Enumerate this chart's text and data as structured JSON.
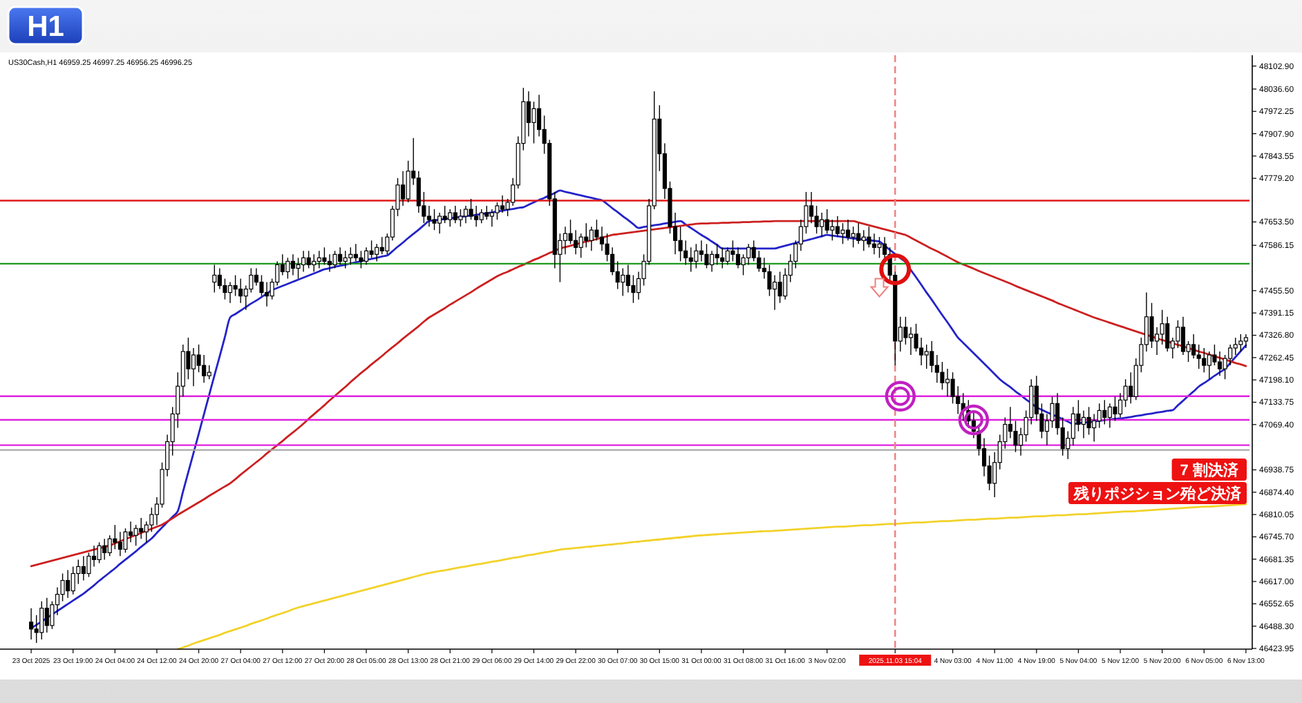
{
  "chart_data": {
    "type": "candlestick",
    "title": "H1",
    "subtitle": "US30Cash,H1 46959.25 46997.25 46956.25 46996.25",
    "categories": [
      "23 Oct 2025",
      null,
      null,
      null,
      null,
      null,
      null,
      null,
      "23 Oct 19:00",
      null,
      null,
      null,
      null,
      null,
      null,
      null,
      "24 Oct 04:00",
      null,
      null,
      null,
      null,
      null,
      null,
      null,
      "24 Oct 12:00",
      null,
      null,
      null,
      null,
      null,
      null,
      null,
      "24 Oct 20:00",
      null,
      null,
      null,
      null,
      null,
      null,
      null,
      "27 Oct 04:00",
      null,
      null,
      null,
      null,
      null,
      null,
      null,
      "27 Oct 12:00",
      null,
      null,
      null,
      null,
      null,
      null,
      null,
      "27 Oct 20:00",
      null,
      null,
      null,
      null,
      null,
      null,
      null,
      "28 Oct 05:00",
      null,
      null,
      null,
      null,
      null,
      null,
      null,
      "28 Oct 13:00",
      null,
      null,
      null,
      null,
      null,
      null,
      null,
      "28 Oct 21:00",
      null,
      null,
      null,
      null,
      null,
      null,
      null,
      "29 Oct 06:00",
      null,
      null,
      null,
      null,
      null,
      null,
      null,
      "29 Oct 14:00",
      null,
      null,
      null,
      null,
      null,
      null,
      null,
      "29 Oct 22:00",
      null,
      null,
      null,
      null,
      null,
      null,
      null,
      "30 Oct 07:00",
      null,
      null,
      null,
      null,
      null,
      null,
      null,
      "30 Oct 15:00",
      null,
      null,
      null,
      null,
      null,
      null,
      null,
      "31 Oct 00:00",
      null,
      null,
      null,
      null,
      null,
      null,
      null,
      "31 Oct 08:00",
      null,
      null,
      null,
      null,
      null,
      null,
      null,
      "31 Oct 16:00",
      null,
      null,
      null,
      null,
      null,
      null,
      null,
      "3 Nov 02:00",
      null,
      null,
      null,
      null,
      null,
      null,
      null,
      null,
      null,
      null,
      null,
      null,
      "2025.11.03 15:04",
      null,
      null,
      null,
      null,
      null,
      null,
      null,
      null,
      null,
      null,
      "4 Nov 03:00",
      null,
      null,
      null,
      null,
      null,
      null,
      null,
      "4 Nov 11:00",
      null,
      null,
      null,
      null,
      null,
      null,
      null,
      "4 Nov 19:00",
      null,
      null,
      null,
      null,
      null,
      null,
      null,
      "5 Nov 04:00",
      null,
      null,
      null,
      null,
      null,
      null,
      null,
      "5 Nov 12:00",
      null,
      null,
      null,
      null,
      null,
      null,
      null,
      "5 Nov 20:00",
      null,
      null,
      null,
      null,
      null,
      null,
      null,
      "6 Nov 05:00",
      null,
      null,
      null,
      null,
      null,
      null,
      null,
      "6 Nov 13:00"
    ],
    "ohlc": [
      [
        46500,
        46540,
        46450,
        46480
      ],
      [
        46480,
        46520,
        46440,
        46470
      ],
      [
        46470,
        46560,
        46450,
        46540
      ],
      [
        46540,
        46570,
        46470,
        46490
      ],
      [
        46490,
        46560,
        46480,
        46550
      ],
      [
        46550,
        46600,
        46520,
        46580
      ],
      [
        46580,
        46640,
        46560,
        46620
      ],
      [
        46620,
        46650,
        46570,
        46590
      ],
      [
        46590,
        46660,
        46580,
        46640
      ],
      [
        46640,
        46680,
        46610,
        46660
      ],
      [
        46660,
        46690,
        46620,
        46640
      ],
      [
        46640,
        46700,
        46630,
        46690
      ],
      [
        46690,
        46720,
        46660,
        46680
      ],
      [
        46680,
        46730,
        46670,
        46720
      ],
      [
        46720,
        46740,
        46680,
        46700
      ],
      [
        46700,
        46750,
        46690,
        46740
      ],
      [
        46740,
        46780,
        46710,
        46730
      ],
      [
        46730,
        46760,
        46690,
        46710
      ],
      [
        46710,
        46770,
        46700,
        46760
      ],
      [
        46760,
        46790,
        46730,
        46750
      ],
      [
        46750,
        46780,
        46720,
        46770
      ],
      [
        46770,
        46800,
        46740,
        46760
      ],
      [
        46760,
        46790,
        46730,
        46780
      ],
      [
        46780,
        46830,
        46760,
        46810
      ],
      [
        46810,
        46860,
        46780,
        46840
      ],
      [
        46840,
        46960,
        46830,
        46940
      ],
      [
        46940,
        47040,
        46920,
        47020
      ],
      [
        47020,
        47120,
        46980,
        47100
      ],
      [
        47100,
        47220,
        47060,
        47180
      ],
      [
        47180,
        47300,
        47150,
        47280
      ],
      [
        47280,
        47320,
        47200,
        47230
      ],
      [
        47230,
        47290,
        47180,
        47270
      ],
      [
        47270,
        47300,
        47220,
        47240
      ],
      [
        47240,
        47270,
        47190,
        47210
      ],
      [
        47210,
        47240,
        47200,
        47220
      ],
      [
        47480,
        47530,
        47450,
        47500
      ],
      [
        47500,
        47520,
        47460,
        47470
      ],
      [
        47470,
        47490,
        47430,
        47450
      ],
      [
        47450,
        47480,
        47420,
        47470
      ],
      [
        47470,
        47500,
        47440,
        47460
      ],
      [
        47460,
        47490,
        47420,
        47440
      ],
      [
        47440,
        47470,
        47400,
        47460
      ],
      [
        47460,
        47520,
        47450,
        47500
      ],
      [
        47500,
        47520,
        47470,
        47480
      ],
      [
        47480,
        47500,
        47440,
        47450
      ],
      [
        47450,
        47480,
        47410,
        47440
      ],
      [
        47440,
        47490,
        47430,
        47480
      ],
      [
        47480,
        47540,
        47470,
        47530
      ],
      [
        47530,
        47560,
        47500,
        47510
      ],
      [
        47510,
        47550,
        47490,
        47540
      ],
      [
        47540,
        47560,
        47500,
        47520
      ],
      [
        47520,
        47550,
        47490,
        47530
      ],
      [
        47530,
        47570,
        47510,
        47550
      ],
      [
        47550,
        47570,
        47520,
        47530
      ],
      [
        47530,
        47560,
        47510,
        47540
      ],
      [
        47540,
        47570,
        47520,
        47550
      ],
      [
        47550,
        47580,
        47530,
        47540
      ],
      [
        47540,
        47560,
        47510,
        47530
      ],
      [
        47530,
        47570,
        47520,
        47560
      ],
      [
        47560,
        47580,
        47530,
        47540
      ],
      [
        47540,
        47570,
        47520,
        47550
      ],
      [
        47550,
        47580,
        47530,
        47560
      ],
      [
        47560,
        47590,
        47540,
        47550
      ],
      [
        47550,
        47570,
        47520,
        47540
      ],
      [
        47540,
        47580,
        47530,
        47570
      ],
      [
        47570,
        47600,
        47550,
        47560
      ],
      [
        47560,
        47590,
        47540,
        47580
      ],
      [
        47580,
        47610,
        47560,
        47570
      ],
      [
        47570,
        47620,
        47560,
        47610
      ],
      [
        47610,
        47700,
        47600,
        47690
      ],
      [
        47690,
        47780,
        47670,
        47760
      ],
      [
        47760,
        47800,
        47700,
        47720
      ],
      [
        47720,
        47830,
        47710,
        47800
      ],
      [
        47800,
        47895,
        47760,
        47780
      ],
      [
        47780,
        47800,
        47680,
        47700
      ],
      [
        47700,
        47740,
        47650,
        47670
      ],
      [
        47670,
        47700,
        47640,
        47660
      ],
      [
        47660,
        47690,
        47630,
        47650
      ],
      [
        47650,
        47680,
        47620,
        47670
      ],
      [
        47670,
        47700,
        47650,
        47660
      ],
      [
        47660,
        47690,
        47640,
        47680
      ],
      [
        47680,
        47700,
        47650,
        47660
      ],
      [
        47660,
        47690,
        47640,
        47670
      ],
      [
        47670,
        47700,
        47650,
        47690
      ],
      [
        47690,
        47720,
        47660,
        47670
      ],
      [
        47670,
        47700,
        47640,
        47660
      ],
      [
        47660,
        47690,
        47650,
        47680
      ],
      [
        47680,
        47700,
        47660,
        47670
      ],
      [
        47670,
        47690,
        47640,
        47680
      ],
      [
        47680,
        47710,
        47660,
        47700
      ],
      [
        47700,
        47730,
        47680,
        47690
      ],
      [
        47690,
        47720,
        47670,
        47710
      ],
      [
        47710,
        47780,
        47700,
        47760
      ],
      [
        47760,
        47900,
        47750,
        47880
      ],
      [
        47880,
        48040,
        47860,
        48000
      ],
      [
        48000,
        48030,
        47900,
        47940
      ],
      [
        47940,
        48000,
        47880,
        47980
      ],
      [
        47980,
        48020,
        47900,
        47920
      ],
      [
        47920,
        47960,
        47850,
        47880
      ],
      [
        47880,
        47890,
        47700,
        47720
      ],
      [
        47720,
        47740,
        47520,
        47560
      ],
      [
        47560,
        47620,
        47480,
        47600
      ],
      [
        47600,
        47640,
        47560,
        47620
      ],
      [
        47620,
        47660,
        47590,
        47600
      ],
      [
        47600,
        47630,
        47560,
        47580
      ],
      [
        47580,
        47620,
        47550,
        47610
      ],
      [
        47610,
        47650,
        47580,
        47600
      ],
      [
        47600,
        47640,
        47570,
        47630
      ],
      [
        47630,
        47660,
        47600,
        47610
      ],
      [
        47610,
        47640,
        47570,
        47590
      ],
      [
        47590,
        47620,
        47540,
        47560
      ],
      [
        47560,
        47580,
        47500,
        47510
      ],
      [
        47510,
        47540,
        47460,
        47480
      ],
      [
        47480,
        47520,
        47440,
        47500
      ],
      [
        47500,
        47530,
        47450,
        47470
      ],
      [
        47470,
        47500,
        47420,
        47450
      ],
      [
        47450,
        47510,
        47430,
        47490
      ],
      [
        47490,
        47560,
        47470,
        47540
      ],
      [
        47540,
        47720,
        47530,
        47700
      ],
      [
        47700,
        48030,
        47690,
        47950
      ],
      [
        47950,
        47990,
        47800,
        47850
      ],
      [
        47850,
        47880,
        47720,
        47750
      ],
      [
        47750,
        47770,
        47620,
        47640
      ],
      [
        47640,
        47680,
        47560,
        47600
      ],
      [
        47600,
        47640,
        47540,
        47570
      ],
      [
        47570,
        47600,
        47530,
        47550
      ],
      [
        47550,
        47580,
        47510,
        47540
      ],
      [
        47540,
        47590,
        47520,
        47570
      ],
      [
        47570,
        47600,
        47540,
        47560
      ],
      [
        47560,
        47590,
        47520,
        47530
      ],
      [
        47530,
        47570,
        47510,
        47560
      ],
      [
        47560,
        47590,
        47530,
        47550
      ],
      [
        47550,
        47580,
        47520,
        47540
      ],
      [
        47540,
        47580,
        47530,
        47570
      ],
      [
        47570,
        47600,
        47540,
        47560
      ],
      [
        47560,
        47580,
        47520,
        47530
      ],
      [
        47530,
        47560,
        47500,
        47550
      ],
      [
        47550,
        47590,
        47530,
        47580
      ],
      [
        47580,
        47600,
        47540,
        47550
      ],
      [
        47550,
        47570,
        47510,
        47520
      ],
      [
        47520,
        47550,
        47490,
        47510
      ],
      [
        47510,
        47530,
        47440,
        47460
      ],
      [
        47460,
        47500,
        47400,
        47480
      ],
      [
        47480,
        47510,
        47420,
        47440
      ],
      [
        47440,
        47520,
        47430,
        47500
      ],
      [
        47500,
        47560,
        47480,
        47540
      ],
      [
        47540,
        47600,
        47520,
        47590
      ],
      [
        47590,
        47660,
        47570,
        47640
      ],
      [
        47640,
        47740,
        47620,
        47700
      ],
      [
        47700,
        47740,
        47650,
        47670
      ],
      [
        47670,
        47700,
        47620,
        47640
      ],
      [
        47640,
        47680,
        47610,
        47660
      ],
      [
        47660,
        47690,
        47620,
        47630
      ],
      [
        47630,
        47660,
        47600,
        47640
      ],
      [
        47640,
        47670,
        47610,
        47620
      ],
      [
        47620,
        47650,
        47590,
        47630
      ],
      [
        47630,
        47660,
        47600,
        47610
      ],
      [
        47610,
        47640,
        47580,
        47620
      ],
      [
        47620,
        47650,
        47590,
        47600
      ],
      [
        47600,
        47630,
        47570,
        47610
      ],
      [
        47610,
        47640,
        47580,
        47590
      ],
      [
        47590,
        47620,
        47560,
        47580
      ],
      [
        47580,
        47610,
        47550,
        47590
      ],
      [
        47590,
        47610,
        47540,
        47560
      ],
      [
        47560,
        47580,
        47480,
        47500
      ],
      [
        47500,
        47510,
        47240,
        47310
      ],
      [
        47310,
        47380,
        47280,
        47350
      ],
      [
        47350,
        47380,
        47300,
        47320
      ],
      [
        47320,
        47350,
        47270,
        47330
      ],
      [
        47330,
        47360,
        47280,
        47290
      ],
      [
        47290,
        47320,
        47240,
        47270
      ],
      [
        47270,
        47300,
        47230,
        47280
      ],
      [
        47280,
        47310,
        47220,
        47240
      ],
      [
        47240,
        47270,
        47190,
        47220
      ],
      [
        47220,
        47250,
        47170,
        47190
      ],
      [
        47190,
        47230,
        47150,
        47200
      ],
      [
        47200,
        47220,
        47130,
        47150
      ],
      [
        47150,
        47180,
        47100,
        47130
      ],
      [
        47130,
        47160,
        47080,
        47110
      ],
      [
        47110,
        47140,
        47060,
        47080
      ],
      [
        47080,
        47110,
        47030,
        47050
      ],
      [
        47050,
        47070,
        46980,
        47000
      ],
      [
        47000,
        47030,
        46920,
        46950
      ],
      [
        46950,
        46980,
        46880,
        46900
      ],
      [
        46900,
        46990,
        46860,
        46960
      ],
      [
        46960,
        47040,
        46940,
        47020
      ],
      [
        47020,
        47090,
        47000,
        47070
      ],
      [
        47070,
        47120,
        47030,
        47050
      ],
      [
        47050,
        47080,
        46990,
        47010
      ],
      [
        47010,
        47060,
        46980,
        47040
      ],
      [
        47040,
        47110,
        47020,
        47090
      ],
      [
        47090,
        47200,
        47070,
        47180
      ],
      [
        47180,
        47210,
        47080,
        47100
      ],
      [
        47100,
        47130,
        47030,
        47050
      ],
      [
        47050,
        47100,
        47010,
        47080
      ],
      [
        47080,
        47150,
        47060,
        47130
      ],
      [
        47130,
        47160,
        47040,
        47060
      ],
      [
        47060,
        47090,
        46980,
        47000
      ],
      [
        47000,
        47050,
        46970,
        47030
      ],
      [
        47030,
        47120,
        47010,
        47100
      ],
      [
        47100,
        47140,
        47050,
        47070
      ],
      [
        47070,
        47110,
        47030,
        47090
      ],
      [
        47090,
        47120,
        47040,
        47060
      ],
      [
        47060,
        47100,
        47020,
        47080
      ],
      [
        47080,
        47130,
        47060,
        47110
      ],
      [
        47110,
        47140,
        47070,
        47090
      ],
      [
        47090,
        47130,
        47060,
        47120
      ],
      [
        47120,
        47150,
        47080,
        47100
      ],
      [
        47100,
        47160,
        47090,
        47140
      ],
      [
        47140,
        47200,
        47120,
        47180
      ],
      [
        47180,
        47220,
        47130,
        47150
      ],
      [
        47150,
        47260,
        47140,
        47240
      ],
      [
        47240,
        47320,
        47220,
        47300
      ],
      [
        47300,
        47450,
        47280,
        47380
      ],
      [
        47380,
        47420,
        47290,
        47310
      ],
      [
        47310,
        47350,
        47270,
        47330
      ],
      [
        47330,
        47400,
        47300,
        47360
      ],
      [
        47360,
        47380,
        47280,
        47290
      ],
      [
        47290,
        47320,
        47260,
        47310
      ],
      [
        47310,
        47370,
        47290,
        47350
      ],
      [
        47350,
        47380,
        47270,
        47280
      ],
      [
        47280,
        47310,
        47250,
        47300
      ],
      [
        47300,
        47330,
        47260,
        47270
      ],
      [
        47270,
        47300,
        47230,
        47260
      ],
      [
        47260,
        47290,
        47220,
        47240
      ],
      [
        47240,
        47280,
        47200,
        47270
      ],
      [
        47270,
        47300,
        47240,
        47250
      ],
      [
        47250,
        47280,
        47210,
        47230
      ],
      [
        47230,
        47270,
        47200,
        47260
      ],
      [
        47260,
        47300,
        47240,
        47290
      ],
      [
        47290,
        47320,
        47270,
        47300
      ],
      [
        47300,
        47330,
        47280,
        47310
      ],
      [
        47310,
        47330,
        47290,
        47320
      ]
    ],
    "series": [
      {
        "type": "line",
        "color": "#2323c8",
        "values": [
          46482,
          46492,
          46502,
          46512,
          46522,
          46532,
          46542,
          46552,
          46562,
          46572,
          46582,
          46594,
          46606,
          46619,
          46631,
          46643,
          46655,
          46668,
          46680,
          46692,
          46704,
          46717,
          46729,
          46741,
          46757,
          46773,
          46788,
          46804,
          46820,
          46876,
          46932,
          46987,
          47043,
          47099,
          47155,
          47211,
          47266,
          47322,
          47378,
          47388,
          47398,
          47408,
          47418,
          47427,
          47437,
          47447,
          47457,
          47463,
          47469,
          47475,
          47481,
          47487,
          47493,
          47499,
          47505,
          47511,
          47517,
          47520,
          47524,
          47527,
          47530,
          47534,
          47537,
          47540,
          47544,
          47547,
          47550,
          47554,
          47557,
          47569,
          47582,
          47594,
          47607,
          47619,
          47631,
          47644,
          47656,
          47658,
          47660,
          47662,
          47664,
          47666,
          47668,
          47670,
          47672,
          47674,
          47676,
          47679,
          47681,
          47684,
          47686,
          47689,
          47691,
          47694,
          47696,
          47703,
          47710,
          47717,
          47723,
          47730,
          47737,
          47744,
          47740,
          47737,
          47733,
          47730,
          47726,
          47723,
          47719,
          47716,
          47705,
          47693,
          47682,
          47670,
          47659,
          47647,
          47636,
          47639,
          47641,
          47644,
          47646,
          47649,
          47651,
          47654,
          47656,
          47646,
          47636,
          47626,
          47616,
          47607,
          47597,
          47587,
          47577,
          47577,
          47577,
          47577,
          47577,
          47577,
          47577,
          47577,
          47577,
          47577,
          47577,
          47581,
          47585,
          47589,
          47593,
          47597,
          47600,
          47604,
          47608,
          47612,
          47616,
          47614,
          47612,
          47610,
          47608,
          47606,
          47605,
          47603,
          47601,
          47599,
          47597,
          47585,
          47573,
          47561,
          47549,
          47537,
          47515,
          47494,
          47472,
          47450,
          47429,
          47407,
          47385,
          47364,
          47342,
          47320,
          47305,
          47290,
          47275,
          47260,
          47245,
          47230,
          47215,
          47200,
          47188,
          47177,
          47165,
          47154,
          47142,
          47131,
          47119,
          47112,
          47105,
          47098,
          47092,
          47085,
          47078,
          47071,
          47073,
          47075,
          47076,
          47078,
          47080,
          47082,
          47084,
          47086,
          47087,
          47089,
          47091,
          47094,
          47096,
          47099,
          47101,
          47104,
          47106,
          47109,
          47111,
          47125,
          47138,
          47152,
          47165,
          47179,
          47189,
          47199,
          47210,
          47220,
          47230,
          47247,
          47264,
          47281,
          47298
        ]
      },
      {
        "type": "line",
        "color": "#cc2020",
        "values": [
          46661,
          46665,
          46669,
          46673,
          46677,
          46681,
          46685,
          46689,
          46693,
          46697,
          46701,
          46705,
          46709,
          46713,
          46717,
          46721,
          46727,
          46733,
          46739,
          46745,
          46751,
          46757,
          46763,
          46769,
          46775,
          46781,
          46790,
          46799,
          46809,
          46818,
          46827,
          46836,
          46845,
          46854,
          46864,
          46873,
          46882,
          46891,
          46900,
          46912,
          46925,
          46937,
          46949,
          46961,
          46973,
          46986,
          46998,
          47010,
          47022,
          47035,
          47047,
          47059,
          47072,
          47086,
          47099,
          47112,
          47125,
          47139,
          47152,
          47165,
          47178,
          47192,
          47205,
          47218,
          47230,
          47243,
          47255,
          47267,
          47280,
          47292,
          47304,
          47317,
          47329,
          47341,
          47353,
          47366,
          47378,
          47387,
          47396,
          47405,
          47415,
          47424,
          47433,
          47442,
          47451,
          47461,
          47470,
          47479,
          47488,
          47497,
          47504,
          47510,
          47517,
          47524,
          47530,
          47537,
          47544,
          47550,
          47557,
          47564,
          47570,
          47577,
          47581,
          47585,
          47589,
          47593,
          47597,
          47600,
          47604,
          47608,
          47612,
          47616,
          47618,
          47620,
          47622,
          47624,
          47626,
          47628,
          47630,
          47632,
          47634,
          47636,
          47638,
          47640,
          47642,
          47644,
          47646,
          47648,
          47649,
          47649,
          47650,
          47650,
          47651,
          47651,
          47652,
          47652,
          47653,
          47653,
          47654,
          47654,
          47655,
          47655,
          47656,
          47656,
          47656,
          47656,
          47656,
          47656,
          47656,
          47656,
          47656,
          47656,
          47656,
          47656,
          47656,
          47656,
          47656,
          47656,
          47652,
          47648,
          47644,
          47640,
          47636,
          47632,
          47628,
          47624,
          47620,
          47616,
          47608,
          47600,
          47592,
          47584,
          47576,
          47569,
          47561,
          47553,
          47545,
          47537,
          47531,
          47525,
          47519,
          47512,
          47506,
          47500,
          47494,
          47488,
          47482,
          47476,
          47469,
          47463,
          47457,
          47451,
          47445,
          47439,
          47433,
          47427,
          47420,
          47414,
          47408,
          47402,
          47396,
          47390,
          47384,
          47378,
          47373,
          47368,
          47363,
          47358,
          47353,
          47348,
          47343,
          47338,
          47333,
          47328,
          47323,
          47318,
          47313,
          47309,
          47304,
          47299,
          47295,
          47290,
          47285,
          47280,
          47276,
          47271,
          47266,
          47262,
          47257,
          47252,
          47247,
          47243,
          47238
        ]
      },
      {
        "type": "line",
        "color": "#f2d22a",
        "values": [
          null,
          null,
          null,
          null,
          null,
          null,
          null,
          null,
          null,
          null,
          null,
          null,
          null,
          null,
          null,
          null,
          null,
          null,
          null,
          null,
          null,
          null,
          null,
          null,
          null,
          null,
          null,
          null,
          46422,
          46427,
          46432,
          46438,
          46443,
          46448,
          46453,
          46458,
          46463,
          46469,
          46474,
          46479,
          46484,
          46489,
          46495,
          46500,
          46505,
          46510,
          46516,
          46521,
          46526,
          46531,
          46537,
          46542,
          46546,
          46550,
          46554,
          46558,
          46562,
          46566,
          46570,
          46574,
          46578,
          46582,
          46586,
          46590,
          46594,
          46598,
          46602,
          46606,
          46610,
          46614,
          46618,
          46622,
          46626,
          46630,
          46634,
          46638,
          46641,
          46644,
          46647,
          46649,
          46652,
          46655,
          46658,
          46660,
          46663,
          46666,
          46668,
          46671,
          46674,
          46676,
          46679,
          46682,
          46685,
          46687,
          46690,
          46693,
          46695,
          46698,
          46701,
          46703,
          46706,
          46709,
          46711,
          46712,
          46714,
          46715,
          46717,
          46718,
          46720,
          46721,
          46723,
          46724,
          46726,
          46727,
          46729,
          46731,
          46732,
          46734,
          46735,
          46737,
          46738,
          46740,
          46741,
          46743,
          46744,
          46746,
          46747,
          46749,
          46750,
          46751,
          46752,
          46753,
          46754,
          46755,
          46756,
          46757,
          46758,
          46759,
          46760,
          46761,
          46762,
          46762,
          46763,
          46764,
          46765,
          46766,
          46767,
          46768,
          46769,
          46770,
          46771,
          46772,
          46773,
          46774,
          46775,
          46775,
          46776,
          46777,
          46778,
          46779,
          46779,
          46780,
          46781,
          46782,
          46783,
          46783,
          46784,
          46785,
          46786,
          46787,
          46787,
          46788,
          46789,
          46790,
          46791,
          46791,
          46792,
          46793,
          46794,
          46795,
          46795,
          46796,
          46797,
          46798,
          46798,
          46799,
          46800,
          46801,
          46801,
          46802,
          46803,
          46804,
          46805,
          46805,
          46806,
          46807,
          46808,
          46808,
          46809,
          46810,
          46811,
          46811,
          46812,
          46813,
          46814,
          46815,
          46816,
          46817,
          46818,
          46819,
          46819,
          46820,
          46821,
          46822,
          46823,
          46824,
          46825,
          46826,
          46827,
          46828,
          46829,
          46830,
          46831,
          46832,
          46833,
          46833,
          46834,
          46835,
          46836,
          46837,
          46838,
          46839,
          46840
        ]
      }
    ],
    "ylim": [
      46422,
      48134
    ],
    "yticks": [
      {
        "value": 48102.9,
        "label": "48102.90"
      },
      {
        "value": 48036.6,
        "label": "48036.60"
      },
      {
        "value": 47972.25,
        "label": "47972.25"
      },
      {
        "value": 47907.9,
        "label": "47907.90"
      },
      {
        "value": 47843.55,
        "label": "47843.55"
      },
      {
        "value": 47779.2,
        "label": "47779.20"
      },
      {
        "value": 47653.5,
        "label": "47653.50"
      },
      {
        "value": 47586.15,
        "label": "47586.15"
      },
      {
        "value": 47455.5,
        "label": "47455.50"
      },
      {
        "value": 47391.15,
        "label": "47391.15"
      },
      {
        "value": 47326.8,
        "label": "47326.80"
      },
      {
        "value": 47262.45,
        "label": "47262.45"
      },
      {
        "value": 47198.1,
        "label": "47198.10"
      },
      {
        "value": 47133.75,
        "label": "47133.75"
      },
      {
        "value": 47069.4,
        "label": "47069.40"
      },
      {
        "value": 46938.75,
        "label": "46938.75"
      },
      {
        "value": 46874.4,
        "label": "46874.40"
      },
      {
        "value": 46810.05,
        "label": "46810.05"
      },
      {
        "value": 46745.7,
        "label": "46745.70"
      },
      {
        "value": 46681.35,
        "label": "46681.35"
      },
      {
        "value": 46617,
        "label": "46617.00"
      },
      {
        "value": 46552.65,
        "label": "46552.65"
      },
      {
        "value": 46488.3,
        "label": "46488.30"
      },
      {
        "value": 46423.95,
        "label": "46423.95"
      }
    ],
    "ref_lines": [
      {
        "axis": "y",
        "value": 47715,
        "color": "#e01818"
      },
      {
        "axis": "y",
        "value": 47533,
        "color": "#1f9a1f"
      },
      {
        "axis": "y",
        "value": 47151,
        "color": "#e020e0"
      },
      {
        "axis": "y",
        "value": 47083,
        "color": "#e020e0"
      },
      {
        "axis": "y",
        "value": 47010,
        "color": "#e020e0"
      },
      {
        "axis": "y",
        "value": 46996,
        "color": "#a8a8a8"
      },
      {
        "axis": "x",
        "value": "2025.11.03 15:04",
        "color": "#ee8080",
        "line_style": "dashed"
      }
    ],
    "annotations": [
      "7 割決済",
      "残りポジション殆ど決済"
    ]
  }
}
